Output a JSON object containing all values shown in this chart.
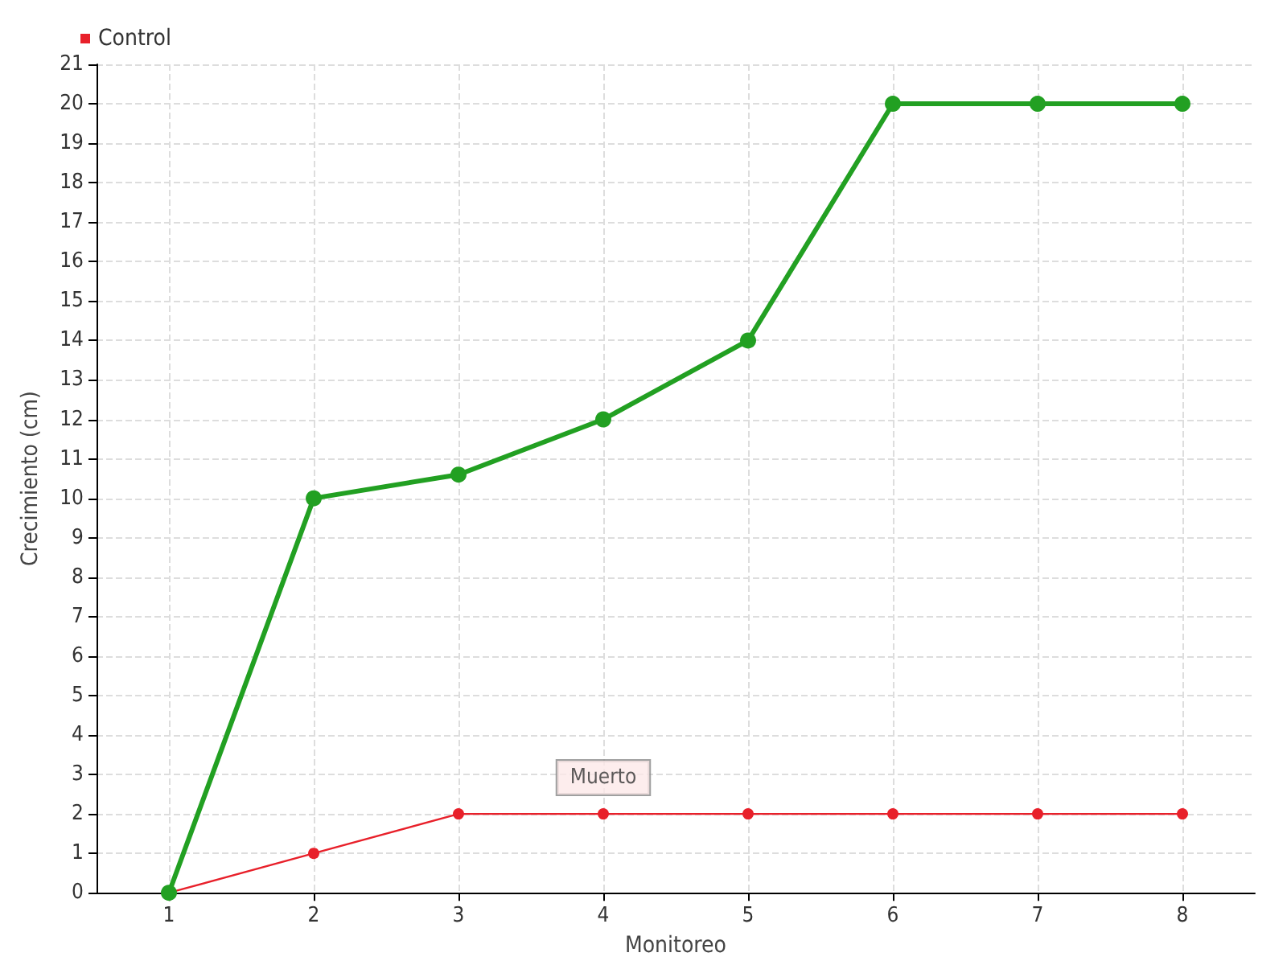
{
  "chart_data": {
    "type": "line",
    "xlabel": "Monitoreo",
    "ylabel": "Crecimiento (cm)",
    "x": [
      1,
      2,
      3,
      4,
      5,
      6,
      7,
      8
    ],
    "series": [
      {
        "color": "#22a022",
        "values": [
          0,
          10,
          10.6,
          12,
          14,
          20,
          20,
          20
        ]
      },
      {
        "name": "Control",
        "color": "#e8202a",
        "values": [
          0,
          1,
          2,
          2,
          2,
          2,
          2,
          2
        ]
      }
    ],
    "xlim": [
      0.5,
      8.5
    ],
    "xticks": [
      1,
      2,
      3,
      4,
      5,
      6,
      7,
      8
    ],
    "ylim": [
      0,
      21
    ],
    "yticks": [
      0,
      1,
      2,
      3,
      4,
      5,
      6,
      7,
      8,
      9,
      10,
      11,
      12,
      13,
      14,
      15,
      16,
      17,
      18,
      19,
      20,
      21
    ],
    "annotations": [
      {
        "text": "Muerto",
        "x": 4,
        "y": 2
      }
    ],
    "grid": true,
    "legend": "top left",
    "marker": "circle",
    "line_style": "solid"
  }
}
